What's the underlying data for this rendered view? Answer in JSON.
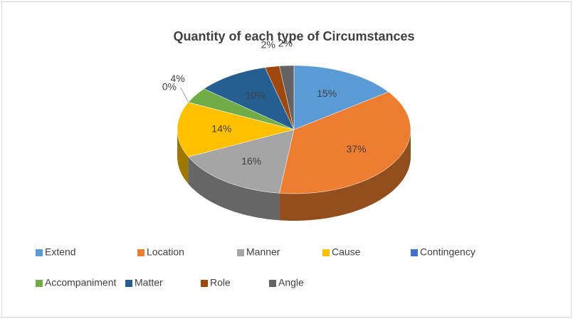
{
  "chart_data": {
    "type": "pie3d",
    "title": "Quantity of each type of Circumstances",
    "categories": [
      "Extend",
      "Location",
      "Manner",
      "Cause",
      "Contingency",
      "Accompaniment",
      "Matter",
      "Role",
      "Angle"
    ],
    "values": [
      15,
      37,
      16,
      14,
      0,
      4,
      10,
      2,
      2
    ],
    "value_labels": [
      "15%",
      "37%",
      "16%",
      "14%",
      "0%",
      "4%",
      "10%",
      "2%",
      "2%"
    ],
    "colors": [
      "#5b9bd5",
      "#ed7d31",
      "#a5a5a5",
      "#ffc000",
      "#4472c4",
      "#70ad47",
      "#255e91",
      "#9e480e",
      "#636363"
    ],
    "legend": "bottom"
  }
}
